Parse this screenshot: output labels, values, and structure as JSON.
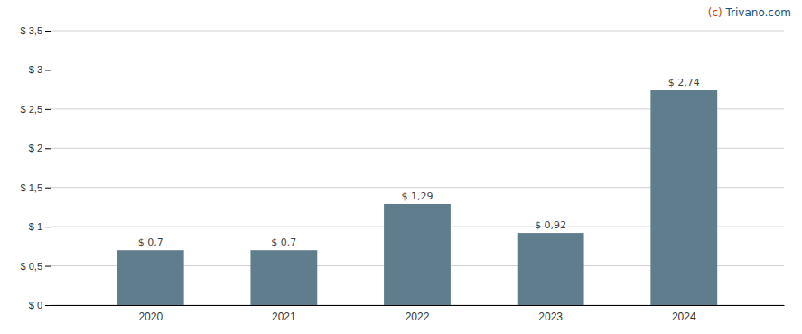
{
  "chart_data": {
    "type": "bar",
    "categories": [
      "2020",
      "2021",
      "2022",
      "2023",
      "2024"
    ],
    "values": [
      0.7,
      0.7,
      1.29,
      0.92,
      2.74
    ],
    "value_labels": [
      "$ 0,7",
      "$ 0,7",
      "$ 1,29",
      "$ 0,92",
      "$ 2,74"
    ],
    "data_labels": true,
    "color": "#5f7d8c",
    "ylim": [
      0,
      3.5
    ],
    "yticks": [
      {
        "value": 0,
        "label": "$ 0"
      },
      {
        "value": 0.5,
        "label": "$ 0,5"
      },
      {
        "value": 1.0,
        "label": "$ 1"
      },
      {
        "value": 1.5,
        "label": "$ 1,5"
      },
      {
        "value": 2.0,
        "label": "$ 2"
      },
      {
        "value": 2.5,
        "label": "$ 2,5"
      },
      {
        "value": 3.0,
        "label": "$ 3"
      },
      {
        "value": 3.5,
        "label": "$ 3,5"
      }
    ],
    "grid": true,
    "annotations": [
      {
        "text": "(c) ",
        "color": "#cc4400"
      },
      {
        "text": "Trivano.com",
        "color": "#1a4f7a"
      }
    ]
  }
}
